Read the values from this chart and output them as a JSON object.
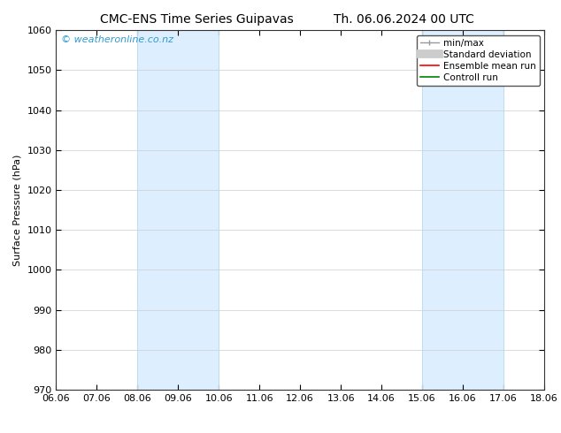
{
  "title_left": "CMC-ENS Time Series Guipavas",
  "title_right": "Th. 06.06.2024 00 UTC",
  "ylabel": "Surface Pressure (hPa)",
  "ylim": [
    970,
    1060
  ],
  "yticks": [
    970,
    980,
    990,
    1000,
    1010,
    1020,
    1030,
    1040,
    1050,
    1060
  ],
  "xlim": [
    0,
    12
  ],
  "xtick_positions": [
    0,
    1,
    2,
    3,
    4,
    5,
    6,
    7,
    8,
    9,
    10,
    11,
    12
  ],
  "xtick_labels": [
    "06.06",
    "07.06",
    "08.06",
    "09.06",
    "10.06",
    "11.06",
    "12.06",
    "13.06",
    "14.06",
    "15.06",
    "16.06",
    "17.06",
    "18.06"
  ],
  "shaded_bands": [
    {
      "xstart_days": 2.0,
      "xend_days": 4.0
    },
    {
      "xstart_days": 9.0,
      "xend_days": 11.0
    }
  ],
  "shade_color": "#ddeeff",
  "shade_edge_color": "#bbddee",
  "background_color": "#ffffff",
  "grid_color": "#cccccc",
  "watermark_text": "© weatheronline.co.nz",
  "watermark_color": "#3399cc",
  "title_fontsize": 10,
  "axis_label_fontsize": 8,
  "tick_fontsize": 8,
  "watermark_fontsize": 8,
  "legend_fontsize": 7.5
}
